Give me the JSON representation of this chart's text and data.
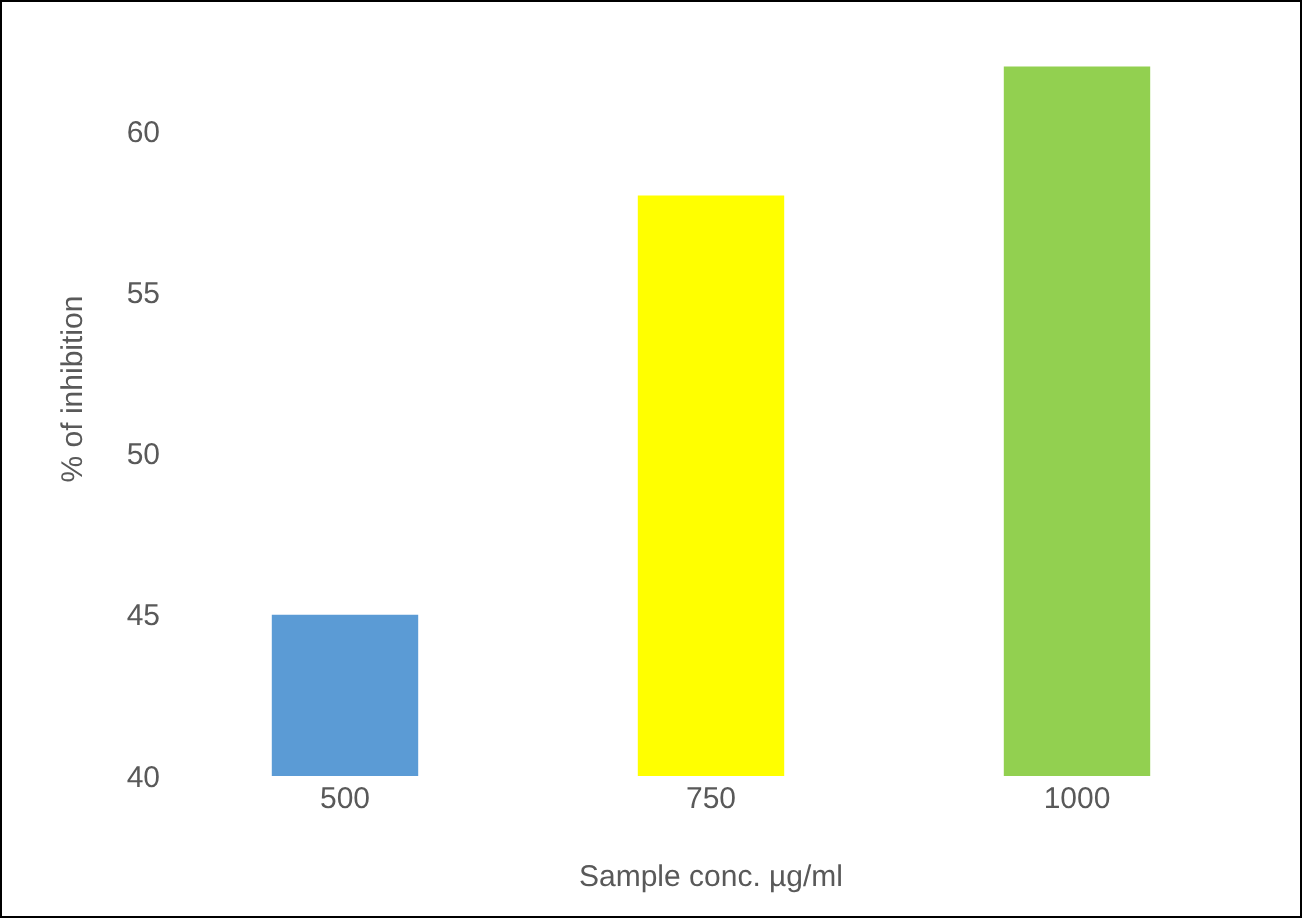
{
  "chart_data": {
    "type": "bar",
    "xlabel": "Sample conc. µg/ml",
    "ylabel": "% of inhibition",
    "categories": [
      "500",
      "750",
      "1000"
    ],
    "values": [
      45,
      58,
      62
    ],
    "colors": [
      "#5b9bd5",
      "#ffff00",
      "#92d050"
    ],
    "ylim": [
      40,
      64
    ],
    "yticks": [
      40,
      45,
      50,
      55,
      60
    ],
    "grid": false
  }
}
